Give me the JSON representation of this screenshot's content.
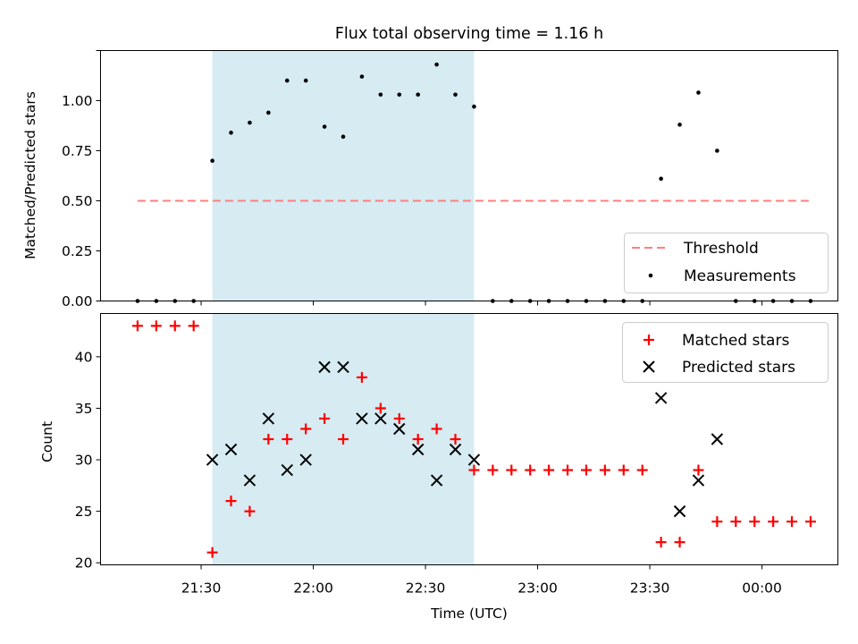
{
  "title": "Flux total observing time = 1.16 h",
  "chart_data": [
    {
      "type": "scatter",
      "panel": "top",
      "ylabel": "Matched/Predicted stars",
      "ylim": [
        0,
        1.25
      ],
      "yticks": [
        0,
        0.25,
        0.5,
        0.75,
        1.0,
        1.25
      ],
      "ytick_labels": [
        "0.00",
        "0.25",
        "0.50",
        "0.75",
        "1.00",
        ""
      ],
      "threshold": 0.5,
      "threshold_color": "#ff7f7f",
      "shaded_span": [
        "21:33",
        "22:43"
      ],
      "shade_color": "#add8e6",
      "legend": [
        "Threshold",
        "Measurements"
      ],
      "legend_position": "lower right",
      "x": [
        "21:13",
        "21:18",
        "21:23",
        "21:28",
        "21:33",
        "21:38",
        "21:43",
        "21:48",
        "21:53",
        "21:58",
        "22:03",
        "22:08",
        "22:13",
        "22:18",
        "22:23",
        "22:28",
        "22:33",
        "22:38",
        "22:43",
        "22:48",
        "22:53",
        "22:58",
        "23:03",
        "23:08",
        "23:13",
        "23:18",
        "23:23",
        "23:28",
        "23:33",
        "23:38",
        "23:43",
        "23:48",
        "23:53",
        "23:58",
        "00:03",
        "00:08",
        "00:13"
      ],
      "y": [
        0,
        0,
        0,
        0,
        0.7,
        0.84,
        0.89,
        0.94,
        1.1,
        1.1,
        0.87,
        0.82,
        1.12,
        1.03,
        1.03,
        1.03,
        1.18,
        1.03,
        0.97,
        0,
        0,
        0,
        0,
        0,
        0,
        0,
        0,
        0,
        0.61,
        0.88,
        1.04,
        0.75,
        0,
        0,
        0,
        0,
        0
      ]
    },
    {
      "type": "scatter",
      "panel": "bottom",
      "ylabel": "Count",
      "xlabel": "Time (UTC)",
      "ylim": [
        19.8,
        44.2
      ],
      "yticks": [
        20,
        25,
        30,
        35,
        40
      ],
      "ytick_labels": [
        "20",
        "25",
        "30",
        "35",
        "40"
      ],
      "xticks": [
        "21:30",
        "22:00",
        "22:30",
        "23:00",
        "23:30",
        "00:00"
      ],
      "legend_position": "upper right",
      "series": [
        {
          "name": "Matched stars",
          "marker": "+",
          "color": "#ff0000",
          "x": [
            "21:13",
            "21:18",
            "21:23",
            "21:28",
            "21:33",
            "21:38",
            "21:43",
            "21:48",
            "21:53",
            "21:58",
            "22:03",
            "22:08",
            "22:13",
            "22:18",
            "22:23",
            "22:28",
            "22:33",
            "22:38",
            "22:43",
            "22:48",
            "22:53",
            "22:58",
            "23:03",
            "23:08",
            "23:13",
            "23:18",
            "23:23",
            "23:28",
            "23:33",
            "23:38",
            "23:43",
            "23:48",
            "23:53",
            "23:58",
            "00:03",
            "00:08",
            "00:13"
          ],
          "y": [
            43,
            43,
            43,
            43,
            21,
            26,
            25,
            32,
            32,
            33,
            34,
            32,
            38,
            35,
            34,
            32,
            33,
            32,
            29,
            29,
            29,
            29,
            29,
            29,
            29,
            29,
            29,
            29,
            22,
            22,
            29,
            24,
            24,
            24,
            24,
            24,
            24
          ]
        },
        {
          "name": "Predicted stars",
          "marker": "x",
          "color": "#000000",
          "x": [
            "21:33",
            "21:38",
            "21:43",
            "21:48",
            "21:53",
            "21:58",
            "22:03",
            "22:08",
            "22:13",
            "22:18",
            "22:23",
            "22:28",
            "22:33",
            "22:38",
            "22:43",
            "23:33",
            "23:38",
            "23:43",
            "23:48"
          ],
          "y": [
            30,
            31,
            28,
            34,
            29,
            30,
            39,
            39,
            34,
            34,
            33,
            31,
            28,
            31,
            30,
            36,
            25,
            28,
            32
          ]
        }
      ]
    }
  ]
}
